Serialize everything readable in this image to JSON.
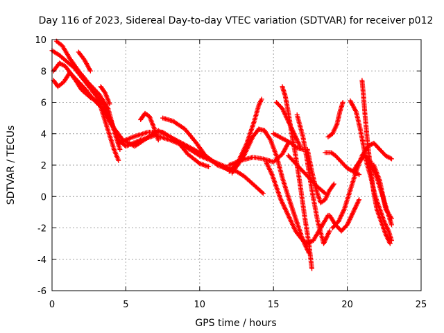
{
  "chart_data": {
    "type": "scatter",
    "title": "Day 116 of 2023, Sidereal Day-to-day VTEC variation (SDTVAR) for receiver p012",
    "xlabel": "GPS time / hours",
    "ylabel": "SDTVAR / TECUs",
    "xlim": [
      0,
      25
    ],
    "ylim": [
      -6,
      10
    ],
    "x_ticks": [
      "0",
      "5",
      "10",
      "15",
      "20",
      "25"
    ],
    "y_ticks": [
      "-6",
      "-4",
      "-2",
      "0",
      "2",
      "4",
      "6",
      "8",
      "10"
    ],
    "grid": true,
    "marker": "+",
    "color": "#ff0000",
    "series": [
      {
        "x": [
          0.0,
          0.5,
          1.0,
          1.5,
          2.0,
          2.5,
          3.0,
          3.5,
          4.0,
          4.5,
          5.0,
          6.0,
          7.0,
          8.0,
          9.0,
          10.0,
          11.0,
          12.0
        ],
        "y": [
          9.3,
          9.0,
          8.6,
          8.2,
          7.6,
          7.0,
          6.4,
          5.8,
          4.8,
          3.6,
          3.2,
          3.6,
          3.9,
          3.6,
          3.2,
          2.6,
          2.2,
          1.8
        ]
      },
      {
        "x": [
          0.1,
          0.4,
          0.8,
          1.2,
          1.6,
          2.0,
          2.6,
          3.2,
          3.8,
          4.2,
          4.5
        ],
        "y": [
          7.4,
          7.0,
          7.3,
          7.9,
          7.4,
          6.8,
          6.3,
          6.0,
          4.2,
          3.0,
          2.3
        ]
      },
      {
        "x": [
          0.1,
          0.5,
          0.9,
          1.3,
          1.7,
          2.2,
          2.8,
          3.4,
          4.0,
          4.8,
          5.6,
          6.4,
          7.2,
          8.0,
          9.0,
          10.0,
          11.0,
          11.8,
          12.5,
          13.0,
          13.6,
          14.3
        ],
        "y": [
          8.0,
          8.5,
          8.3,
          7.8,
          7.4,
          6.9,
          6.2,
          5.6,
          4.6,
          3.6,
          3.2,
          3.7,
          4.2,
          3.8,
          3.3,
          2.8,
          2.2,
          1.8,
          1.6,
          1.3,
          0.8,
          0.2
        ]
      },
      {
        "x": [
          0.3,
          0.7,
          1.2,
          1.8,
          2.5,
          3.2,
          3.8,
          4.2,
          4.6
        ],
        "y": [
          9.9,
          9.6,
          8.8,
          8.0,
          7.2,
          6.5,
          5.6,
          4.2,
          3.0
        ]
      },
      {
        "x": [
          1.8,
          2.2,
          2.6
        ],
        "y": [
          9.2,
          8.7,
          8.0
        ]
      },
      {
        "x": [
          3.3,
          3.6,
          3.9
        ],
        "y": [
          7.0,
          6.6,
          5.9
        ]
      },
      {
        "x": [
          6.0,
          6.3,
          6.6,
          6.9,
          7.2
        ],
        "y": [
          4.9,
          5.3,
          5.1,
          4.4,
          3.6
        ]
      },
      {
        "x": [
          7.5,
          8.2,
          9.0,
          9.7,
          10.4,
          11.2,
          12.0
        ],
        "y": [
          5.0,
          4.8,
          4.3,
          3.5,
          2.6,
          2.0,
          1.7
        ]
      },
      {
        "x": [
          4.5,
          5.5,
          6.5,
          7.5,
          8.5,
          9.2,
          10.0,
          10.6
        ],
        "y": [
          3.4,
          3.8,
          4.1,
          4.1,
          3.5,
          2.7,
          2.1,
          1.9
        ]
      },
      {
        "x": [
          12.0,
          12.6,
          13.2,
          13.7,
          14.0,
          14.2
        ],
        "y": [
          1.6,
          2.2,
          3.4,
          4.8,
          5.8,
          6.2
        ]
      },
      {
        "x": [
          12.2,
          13.0,
          13.6,
          14.0,
          14.4,
          14.8,
          15.2,
          15.6,
          16.0,
          16.5,
          17.0,
          17.4
        ],
        "y": [
          1.5,
          2.6,
          3.8,
          4.3,
          4.2,
          3.6,
          2.6,
          1.2,
          0.0,
          -1.4,
          -2.8,
          -3.6
        ]
      },
      {
        "x": [
          12.0,
          12.8,
          13.6,
          14.3,
          15.0,
          15.6,
          16.0
        ],
        "y": [
          2.0,
          2.3,
          2.5,
          2.4,
          2.2,
          2.7,
          3.4
        ]
      },
      {
        "x": [
          14.5,
          14.9,
          15.2,
          15.5,
          15.9,
          16.2,
          16.5,
          16.9,
          17.3,
          17.7,
          18.2,
          18.7
        ],
        "y": [
          2.2,
          1.4,
          0.6,
          -0.2,
          -1.0,
          -1.6,
          -2.2,
          -2.7,
          -3.0,
          -2.8,
          -2.0,
          -1.2
        ]
      },
      {
        "x": [
          15.0,
          15.4,
          15.8,
          16.2,
          16.6,
          17.0
        ],
        "y": [
          4.0,
          3.8,
          3.6,
          3.4,
          3.1,
          3.0
        ]
      },
      {
        "x": [
          15.6,
          15.8,
          16.0,
          16.2,
          16.5,
          16.8,
          17.1,
          17.4,
          17.6
        ],
        "y": [
          7.0,
          6.4,
          5.4,
          4.2,
          2.6,
          0.8,
          -1.2,
          -3.0,
          -4.6
        ]
      },
      {
        "x": [
          15.2,
          15.6,
          16.0,
          16.4,
          16.8
        ],
        "y": [
          6.0,
          5.6,
          4.8,
          4.0,
          3.2
        ]
      },
      {
        "x": [
          16.0,
          16.4,
          16.8,
          17.2,
          17.6,
          18.0,
          18.5
        ],
        "y": [
          2.6,
          2.2,
          1.8,
          1.4,
          1.0,
          0.6,
          0.2
        ]
      },
      {
        "x": [
          16.6,
          17.0,
          17.3,
          17.6,
          18.0,
          18.4,
          18.8
        ],
        "y": [
          5.2,
          3.8,
          2.2,
          0.4,
          -1.6,
          -3.0,
          -2.2
        ]
      },
      {
        "x": [
          17.3,
          17.6,
          17.9,
          18.2,
          18.5,
          18.8,
          19.1
        ],
        "y": [
          3.0,
          1.6,
          0.4,
          -0.4,
          -0.2,
          0.4,
          0.8
        ]
      },
      {
        "x": [
          18.5,
          18.9,
          19.2,
          19.6,
          20.0,
          20.4,
          20.8
        ],
        "y": [
          2.8,
          2.8,
          2.6,
          2.2,
          1.8,
          1.6,
          1.4
        ]
      },
      {
        "x": [
          18.7,
          19.0,
          19.3,
          19.5,
          19.7
        ],
        "y": [
          3.8,
          4.0,
          4.6,
          5.4,
          6.0
        ]
      },
      {
        "x": [
          18.8,
          19.2,
          19.6,
          20.0,
          20.4,
          20.8
        ],
        "y": [
          -1.2,
          -1.8,
          -2.2,
          -1.8,
          -1.0,
          -0.2
        ]
      },
      {
        "x": [
          19.0,
          19.4,
          19.8,
          20.2,
          20.6,
          21.0,
          21.4,
          21.8,
          22.2,
          22.6,
          23.0
        ],
        "y": [
          -2.0,
          -1.6,
          -0.8,
          0.4,
          1.6,
          2.6,
          3.2,
          3.4,
          3.0,
          2.6,
          2.4
        ]
      },
      {
        "x": [
          20.2,
          20.6,
          20.9,
          21.1,
          21.3,
          21.6,
          21.9,
          22.2,
          22.5,
          22.8,
          23.0
        ],
        "y": [
          6.1,
          5.4,
          4.2,
          3.2,
          2.2,
          1.2,
          0.0,
          -0.8,
          -1.6,
          -2.2,
          -2.8
        ]
      },
      {
        "x": [
          21.0,
          21.1,
          21.2,
          21.4,
          21.6,
          21.8,
          22.0,
          22.3,
          22.6,
          22.9
        ],
        "y": [
          7.4,
          6.4,
          5.2,
          3.2,
          1.6,
          0.2,
          -0.8,
          -1.6,
          -2.4,
          -3.0
        ]
      },
      {
        "x": [
          20.4,
          20.8,
          21.2,
          21.6,
          22.0,
          22.4,
          22.8,
          23.0
        ],
        "y": [
          1.6,
          2.2,
          2.6,
          2.2,
          1.2,
          0.0,
          -1.2,
          -1.8
        ]
      },
      {
        "x": [
          21.8,
          22.2,
          22.6,
          23.0
        ],
        "y": [
          2.0,
          1.0,
          -0.8,
          -1.4
        ]
      }
    ]
  }
}
